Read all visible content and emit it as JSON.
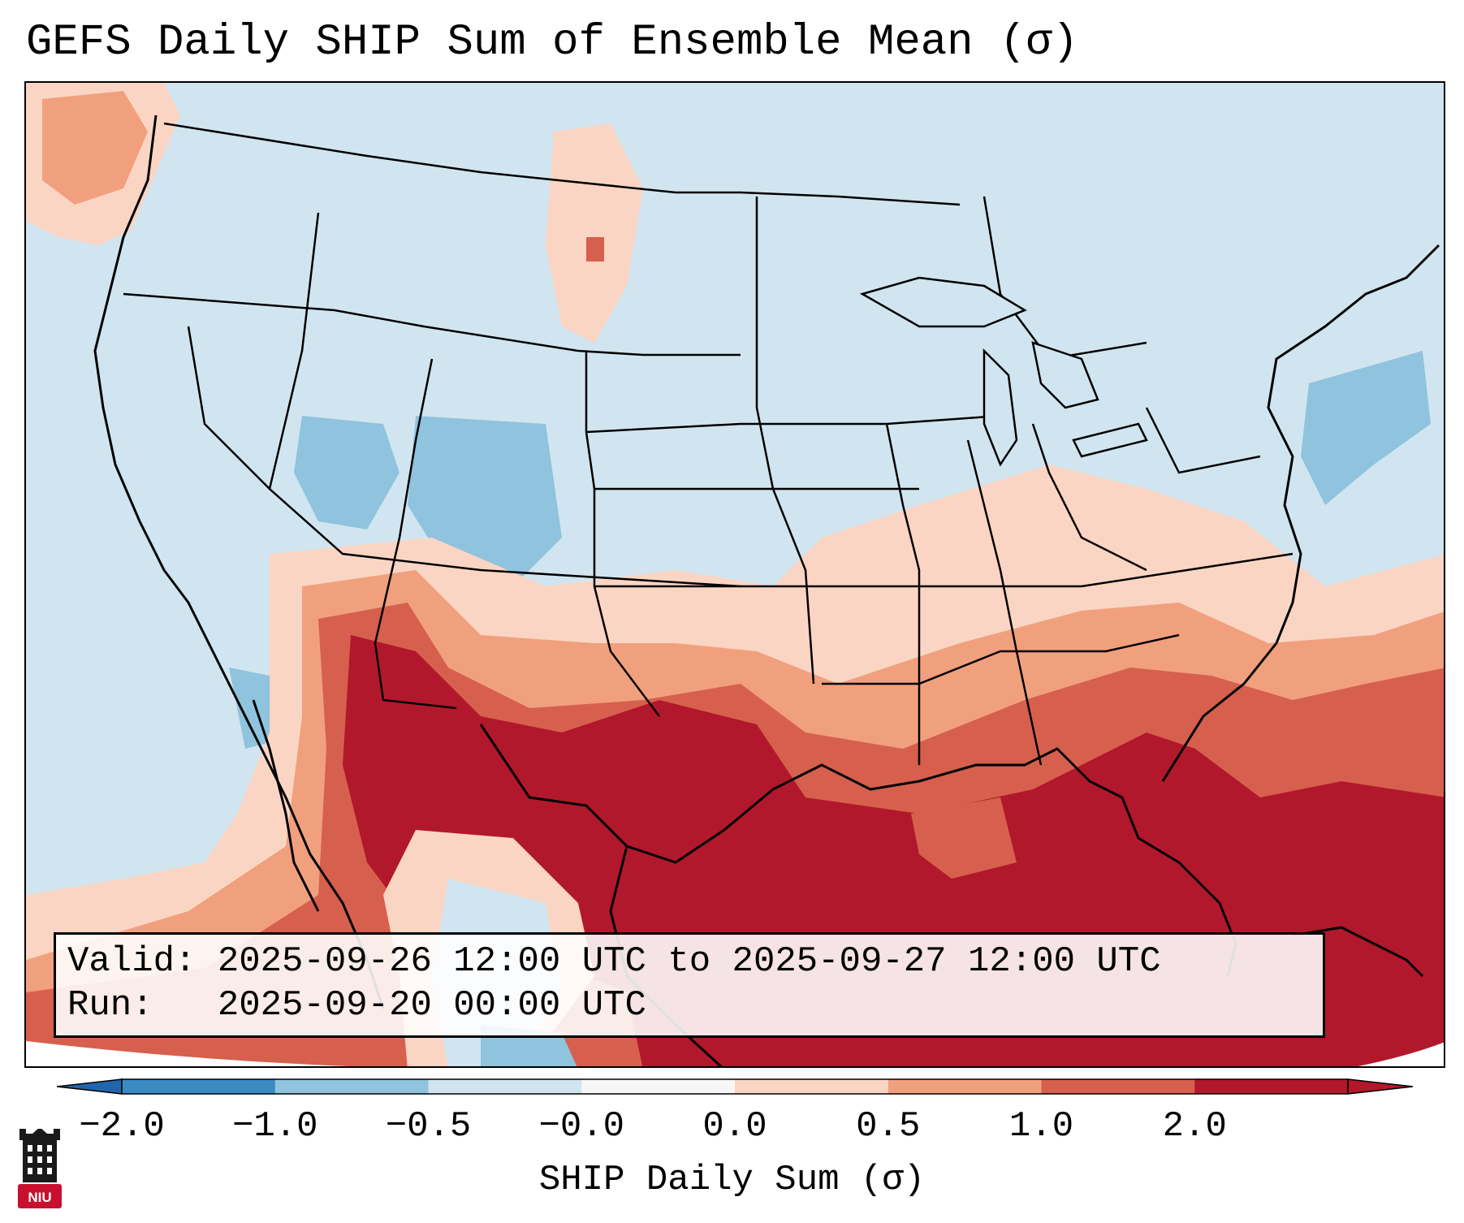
{
  "title": "GEFS Daily SHIP Sum of Ensemble Mean (σ)",
  "valid_line": "Valid: 2025-09-26 12:00 UTC to 2025-09-27 12:00 UTC",
  "run_line": "Run:   2025-09-20 00:00 UTC",
  "colorbar": {
    "label": "SHIP Daily Sum (σ)",
    "ticks": [
      "−2.0",
      "−1.0",
      "−0.5",
      "−0.0",
      "0.0",
      "0.5",
      "1.0",
      "2.0"
    ],
    "colors": [
      "#3b8bc2",
      "#8fc3de",
      "#d1e5f0",
      "#f7f7f7",
      "#fbd5c3",
      "#f1a07e",
      "#d6604d",
      "#b2182b"
    ],
    "under_color": "#2166ac",
    "over_color": "#b2182b"
  },
  "logo": {
    "text": "NIU",
    "icon": "niu-tower-icon",
    "color": "#c8102e"
  },
  "map": {
    "region": "Contiguous United States, Mexico, Gulf of Mexico",
    "projection": "Lambert Conformal"
  }
}
